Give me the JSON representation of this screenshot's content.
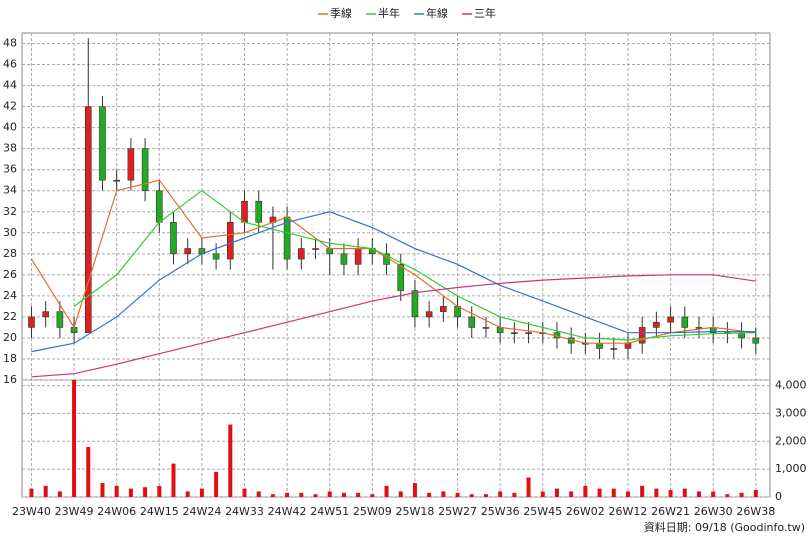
{
  "chart_data": {
    "type": "candlestick",
    "series": [
      {
        "name": "季線",
        "color": "#e0702a",
        "values": [
          27.5,
          21,
          34,
          35,
          29.5,
          30,
          31.5,
          28.5,
          28.5,
          26,
          23,
          21,
          20.5,
          19.5,
          19.5,
          20.5,
          21,
          20.5
        ]
      },
      {
        "name": "半年",
        "color": "#33cc33",
        "values": [
          null,
          23,
          26,
          31,
          34,
          31,
          30,
          29,
          28.5,
          26.5,
          24,
          22,
          21,
          20,
          19.8,
          20.2,
          20.4,
          20.5
        ]
      },
      {
        "name": "年線",
        "color": "#3a6fd0",
        "values": [
          18.7,
          19.5,
          22,
          25.5,
          28,
          29.5,
          31,
          32,
          30.5,
          28.5,
          27,
          25,
          23.5,
          22,
          20.5,
          20.5,
          20.6,
          20.6
        ]
      },
      {
        "name": "三年",
        "color": "#cc3377",
        "values": [
          16.3,
          16.6,
          17.5,
          18.5,
          19.5,
          20.5,
          21.5,
          22.5,
          23.5,
          24.3,
          24.8,
          25.2,
          25.5,
          25.7,
          25.9,
          26,
          26,
          25.4
        ]
      }
    ],
    "ma_x": [
      0,
      9,
      18,
      27,
      36,
      45,
      54,
      63,
      72,
      81,
      90,
      99,
      108,
      117,
      126,
      135,
      144,
      153
    ],
    "candles": {
      "x": [
        0,
        3,
        6,
        9,
        12,
        15,
        18,
        21,
        24,
        27,
        30,
        33,
        36,
        39,
        42,
        45,
        48,
        51,
        54,
        57,
        60,
        63,
        66,
        69,
        72,
        75,
        78,
        81,
        84,
        87,
        90,
        93,
        96,
        99,
        102,
        105,
        108,
        111,
        114,
        117,
        120,
        123,
        126,
        129,
        132,
        135,
        138,
        141,
        144,
        147,
        150,
        153
      ],
      "open": [
        21,
        22,
        22.5,
        21,
        20.5,
        42,
        35,
        35,
        38,
        34,
        31,
        28,
        28.5,
        28,
        27.5,
        31,
        33,
        31,
        31.5,
        27.5,
        28.5,
        28.5,
        28,
        27,
        28.5,
        28,
        27,
        24.5,
        22,
        22.5,
        23,
        22,
        21,
        21,
        20.5,
        20.5,
        20.5,
        20.5,
        20,
        19.5,
        19.5,
        19,
        19,
        19.5,
        21,
        21.5,
        22,
        21,
        21,
        20.5,
        20.5,
        20
      ],
      "high": [
        23,
        23.5,
        23.5,
        22,
        48.5,
        43,
        36,
        39,
        39,
        35,
        32,
        29.5,
        29.5,
        29,
        32,
        34,
        34,
        32.5,
        32.5,
        29.5,
        29.5,
        29.5,
        29,
        29.5,
        29.5,
        29,
        28,
        25.5,
        23.5,
        24,
        24,
        23,
        22,
        22,
        21.5,
        21.5,
        21.5,
        21.5,
        21,
        20.5,
        20.5,
        20,
        20.5,
        22,
        22.5,
        23,
        23,
        22,
        22,
        21.5,
        21.5,
        21
      ],
      "low": [
        20,
        21,
        20,
        19.5,
        21,
        34,
        34,
        34,
        33,
        30,
        27,
        27,
        27,
        26.5,
        26.5,
        30,
        30,
        26.5,
        26.5,
        26.5,
        27.5,
        26,
        26,
        26,
        27,
        26,
        23.5,
        21,
        21,
        21.5,
        21,
        20,
        20,
        19.5,
        19.5,
        19.5,
        19.5,
        19,
        18.5,
        18.5,
        18,
        18,
        18,
        18.5,
        20,
        20.5,
        20,
        20,
        19.5,
        19.5,
        19,
        18.5
      ],
      "close": [
        22,
        22.5,
        21,
        20.5,
        42,
        35,
        35,
        38,
        34,
        31,
        28,
        28.5,
        28,
        27.5,
        31,
        33,
        31,
        31.5,
        27.5,
        28.5,
        28.5,
        28,
        27,
        28.5,
        28,
        27,
        24.5,
        22,
        22.5,
        23,
        22,
        21,
        21,
        20.5,
        20.5,
        20.5,
        20.5,
        20,
        19.5,
        19.5,
        19,
        19,
        19.5,
        21,
        21.5,
        22,
        21,
        21,
        20.5,
        20.5,
        20,
        19.5
      ]
    },
    "up_color": "#e02020",
    "down_color": "#22aa22",
    "volume": {
      "color": "#e01010",
      "values": [
        300,
        400,
        200,
        4200,
        1800,
        500,
        400,
        300,
        350,
        400,
        1200,
        200,
        300,
        900,
        2600,
        300,
        200,
        100,
        150,
        150,
        100,
        200,
        150,
        150,
        100,
        400,
        200,
        500,
        150,
        200,
        150,
        100,
        100,
        200,
        150,
        700,
        200,
        300,
        200,
        400,
        300,
        300,
        200,
        400,
        300,
        250,
        300,
        200,
        200,
        100,
        150,
        250
      ],
      "ylim": [
        0,
        4200
      ],
      "yticks": [
        0,
        {
          "value": 1000,
          "label": "1,000"
        },
        {
          "value": 2000,
          "label": "2,000"
        },
        {
          "value": 3000,
          "label": "3,000"
        },
        {
          "value": 4000,
          "label": "4,000"
        }
      ]
    },
    "xlim": [
      -2,
      156
    ],
    "xticks": [
      {
        "value": 0,
        "label": "23W40"
      },
      {
        "value": 9,
        "label": "23W49"
      },
      {
        "value": 18,
        "label": "24W06"
      },
      {
        "value": 27,
        "label": "24W15"
      },
      {
        "value": 36,
        "label": "24W24"
      },
      {
        "value": 45,
        "label": "24W33"
      },
      {
        "value": 54,
        "label": "24W42"
      },
      {
        "value": 63,
        "label": "24W51"
      },
      {
        "value": 72,
        "label": "25W09"
      },
      {
        "value": 81,
        "label": "25W18"
      },
      {
        "value": 90,
        "label": "25W27"
      },
      {
        "value": 99,
        "label": "25W36"
      },
      {
        "value": 108,
        "label": "25W45"
      },
      {
        "value": 117,
        "label": "26W02"
      },
      {
        "value": 126,
        "label": "26W12"
      },
      {
        "value": 135,
        "label": "26W21"
      },
      {
        "value": 144,
        "label": "26W30"
      },
      {
        "value": 153,
        "label": "26W38"
      }
    ],
    "ylim": [
      16,
      49
    ],
    "yticks": [
      16,
      18,
      20,
      22,
      24,
      26,
      28,
      30,
      32,
      34,
      36,
      38,
      40,
      42,
      44,
      46,
      48
    ],
    "grid": true,
    "footnote": "資料日期: 09/18  (Goodinfo.tw)"
  }
}
